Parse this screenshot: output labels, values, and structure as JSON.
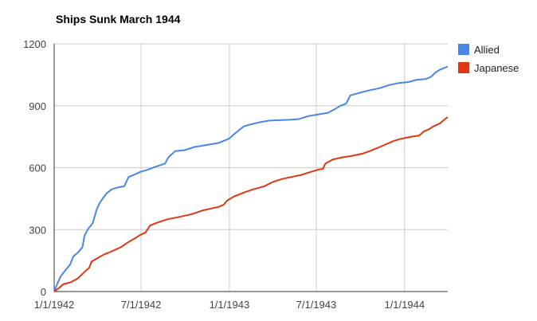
{
  "chart_data": {
    "type": "line",
    "title": "Ships Sunk March 1944",
    "xlabel": "",
    "ylabel": "",
    "ylim": [
      0,
      1200
    ],
    "xlim": [
      "1942-01-01",
      "1944-03-31"
    ],
    "y_ticks": [
      0,
      300,
      600,
      900,
      1200
    ],
    "y_tick_labels": [
      "0",
      "300",
      "600",
      "900",
      "1200"
    ],
    "x_ticks": [
      "1942-01-01",
      "1942-07-01",
      "1943-01-01",
      "1943-07-01",
      "1944-01-01"
    ],
    "x_tick_labels": [
      "1/1/1942",
      "7/1/1942",
      "1/1/1943",
      "7/1/1943",
      "1/1/1944"
    ],
    "grid": true,
    "legend_position": "right",
    "series": [
      {
        "name": "Allied",
        "color": "#4a86e8",
        "points": [
          [
            "1942-01-01",
            0
          ],
          [
            "1942-01-08",
            40
          ],
          [
            "1942-01-15",
            75
          ],
          [
            "1942-01-25",
            105
          ],
          [
            "1942-02-03",
            130
          ],
          [
            "1942-02-10",
            170
          ],
          [
            "1942-02-20",
            190
          ],
          [
            "1942-03-01",
            215
          ],
          [
            "1942-03-05",
            270
          ],
          [
            "1942-03-13",
            305
          ],
          [
            "1942-03-22",
            330
          ],
          [
            "1942-03-31",
            400
          ],
          [
            "1942-04-06",
            430
          ],
          [
            "1942-04-12",
            450
          ],
          [
            "1942-04-20",
            475
          ],
          [
            "1942-05-01",
            495
          ],
          [
            "1942-05-15",
            505
          ],
          [
            "1942-05-27",
            510
          ],
          [
            "1942-06-05",
            555
          ],
          [
            "1942-06-16",
            565
          ],
          [
            "1942-06-30",
            580
          ],
          [
            "1942-07-15",
            590
          ],
          [
            "1942-08-01",
            605
          ],
          [
            "1942-08-20",
            620
          ],
          [
            "1942-08-27",
            650
          ],
          [
            "1942-09-10",
            680
          ],
          [
            "1942-09-30",
            685
          ],
          [
            "1942-10-20",
            700
          ],
          [
            "1942-11-15",
            710
          ],
          [
            "1942-12-10",
            720
          ],
          [
            "1942-12-31",
            740
          ],
          [
            "1943-01-15",
            770
          ],
          [
            "1943-01-31",
            800
          ],
          [
            "1943-02-15",
            810
          ],
          [
            "1943-03-05",
            820
          ],
          [
            "1943-03-25",
            828
          ],
          [
            "1943-04-15",
            830
          ],
          [
            "1943-05-05",
            832
          ],
          [
            "1943-05-25",
            835
          ],
          [
            "1943-06-15",
            850
          ],
          [
            "1943-07-05",
            858
          ],
          [
            "1943-07-25",
            865
          ],
          [
            "1943-08-10",
            885
          ],
          [
            "1943-08-20",
            900
          ],
          [
            "1943-09-01",
            910
          ],
          [
            "1943-09-10",
            950
          ],
          [
            "1943-09-30",
            963
          ],
          [
            "1943-10-20",
            975
          ],
          [
            "1943-11-10",
            985
          ],
          [
            "1943-11-30",
            1000
          ],
          [
            "1943-12-20",
            1010
          ],
          [
            "1944-01-10",
            1015
          ],
          [
            "1944-01-25",
            1025
          ],
          [
            "1944-02-15",
            1030
          ],
          [
            "1944-02-25",
            1040
          ],
          [
            "1944-03-05",
            1060
          ],
          [
            "1944-03-15",
            1075
          ],
          [
            "1944-03-31",
            1090
          ]
        ]
      },
      {
        "name": "Japanese",
        "color": "#dc3912",
        "points": [
          [
            "1942-01-01",
            0
          ],
          [
            "1942-01-10",
            15
          ],
          [
            "1942-01-20",
            35
          ],
          [
            "1942-02-05",
            45
          ],
          [
            "1942-02-20",
            65
          ],
          [
            "1942-03-05",
            95
          ],
          [
            "1942-03-15",
            115
          ],
          [
            "1942-03-20",
            145
          ],
          [
            "1942-03-31",
            160
          ],
          [
            "1942-04-15",
            180
          ],
          [
            "1942-05-01",
            195
          ],
          [
            "1942-05-20",
            215
          ],
          [
            "1942-06-05",
            240
          ],
          [
            "1942-06-20",
            260
          ],
          [
            "1942-06-30",
            275
          ],
          [
            "1942-07-10",
            285
          ],
          [
            "1942-07-20",
            320
          ],
          [
            "1942-08-05",
            335
          ],
          [
            "1942-08-25",
            350
          ],
          [
            "1942-09-20",
            362
          ],
          [
            "1942-10-15",
            375
          ],
          [
            "1942-11-05",
            392
          ],
          [
            "1942-11-20",
            400
          ],
          [
            "1942-12-10",
            410
          ],
          [
            "1942-12-20",
            420
          ],
          [
            "1942-12-27",
            440
          ],
          [
            "1943-01-10",
            460
          ],
          [
            "1943-02-01",
            480
          ],
          [
            "1943-02-20",
            495
          ],
          [
            "1943-03-15",
            510
          ],
          [
            "1943-04-01",
            530
          ],
          [
            "1943-04-20",
            545
          ],
          [
            "1943-05-10",
            555
          ],
          [
            "1943-05-31",
            565
          ],
          [
            "1943-06-20",
            580
          ],
          [
            "1943-07-05",
            590
          ],
          [
            "1943-07-15",
            595
          ],
          [
            "1943-07-20",
            620
          ],
          [
            "1943-08-05",
            640
          ],
          [
            "1943-08-25",
            650
          ],
          [
            "1943-09-15",
            658
          ],
          [
            "1943-10-05",
            668
          ],
          [
            "1943-10-20",
            680
          ],
          [
            "1943-11-05",
            695
          ],
          [
            "1943-11-20",
            710
          ],
          [
            "1943-12-10",
            730
          ],
          [
            "1943-12-25",
            740
          ],
          [
            "1944-01-15",
            750
          ],
          [
            "1944-01-31",
            755
          ],
          [
            "1944-02-10",
            775
          ],
          [
            "1944-02-20",
            785
          ],
          [
            "1944-03-01",
            800
          ],
          [
            "1944-03-15",
            815
          ],
          [
            "1944-03-25",
            835
          ],
          [
            "1944-03-31",
            845
          ]
        ]
      }
    ]
  }
}
